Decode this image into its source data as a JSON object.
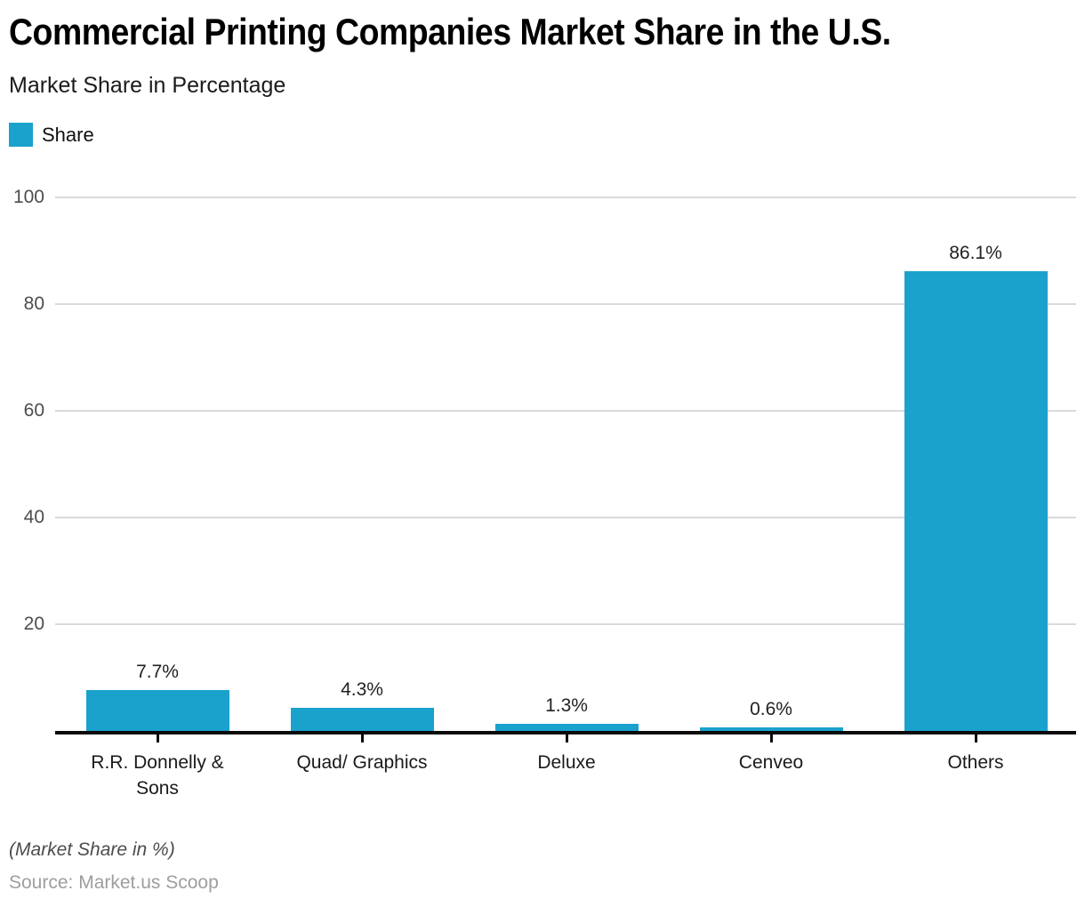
{
  "header": {
    "title": "Commercial Printing Companies Market Share in the U.S.",
    "subtitle": "Market Share in Percentage"
  },
  "legend": {
    "label": "Share",
    "swatch_color": "#1AA2CD"
  },
  "chart_data": {
    "type": "bar",
    "title": "Commercial Printing Companies Market Share in the U.S.",
    "subtitle": "Market Share in Percentage",
    "series_name": "Share",
    "categories": [
      "R.R. Donnelly & Sons",
      "Quad/ Graphics",
      "Deluxe",
      "Cenveo",
      "Others"
    ],
    "values": [
      7.7,
      4.3,
      1.3,
      0.6,
      86.1
    ],
    "value_labels": [
      "7.7%",
      "4.3%",
      "1.3%",
      "0.6%",
      "86.1%"
    ],
    "xlabel": "",
    "ylabel": "",
    "ylim": [
      0,
      100
    ],
    "yticks": [
      20,
      40,
      60,
      80,
      100
    ],
    "grid": true,
    "legend_position": "top-left",
    "bar_color": "#1AA2CD",
    "gridline_color": "#dadada",
    "axis_color": "#0a0a0a"
  },
  "footer": {
    "note": "(Market Share in %)",
    "source": "Source: Market.us Scoop"
  }
}
